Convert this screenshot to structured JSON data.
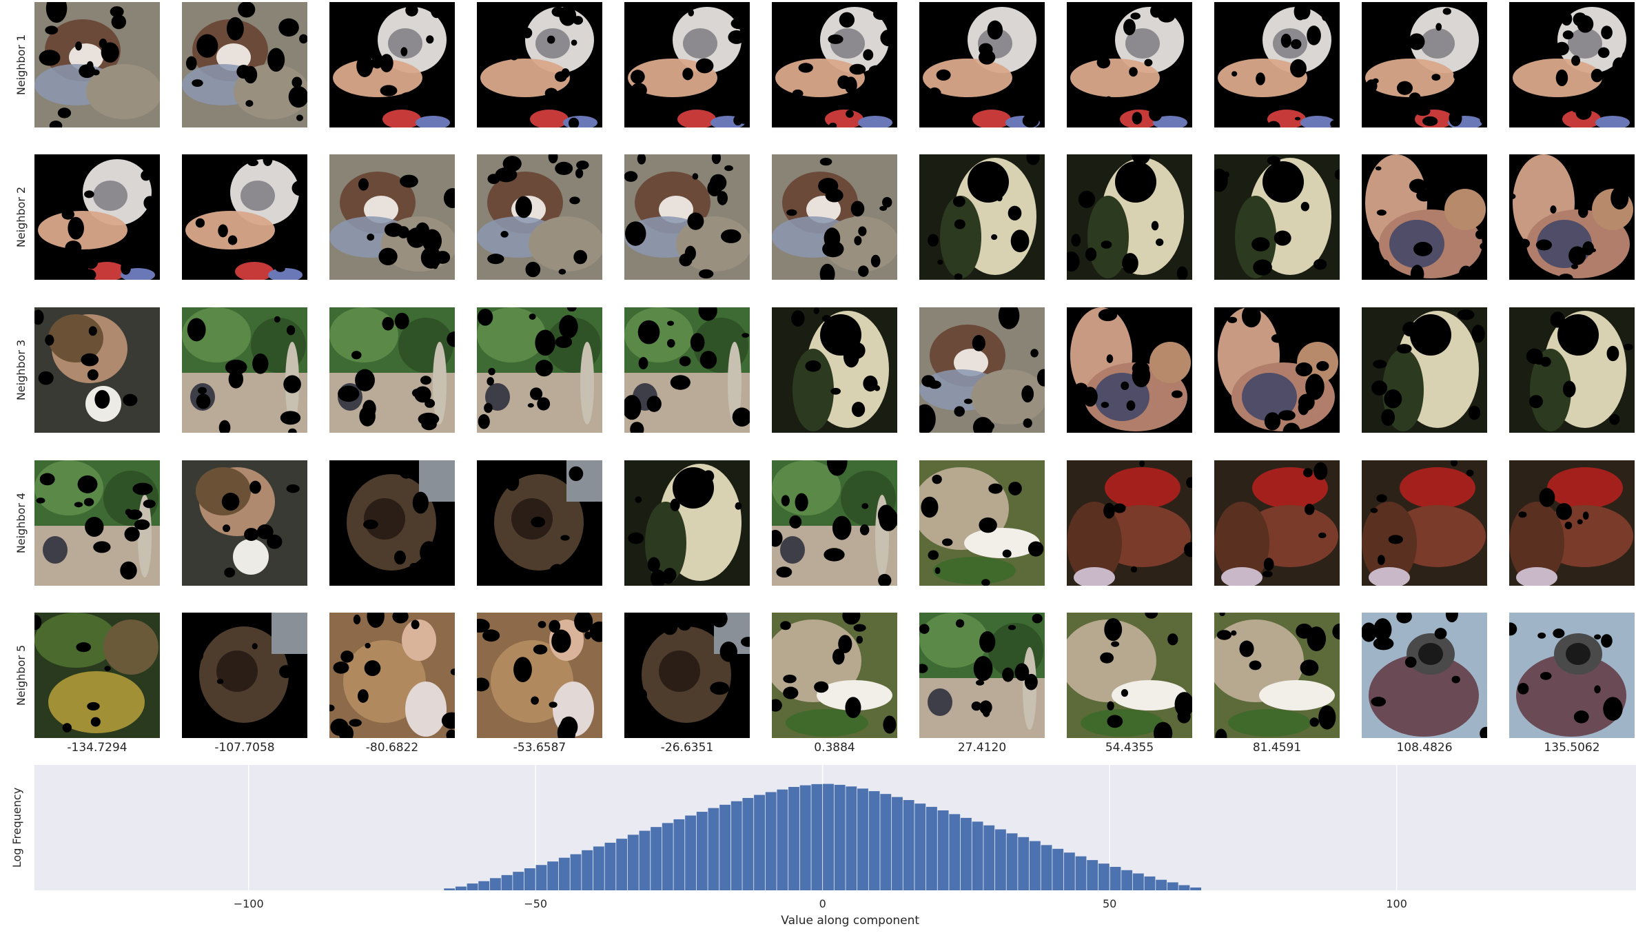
{
  "row_labels": [
    "Neighbor 1",
    "Neighbor 2",
    "Neighbor 3",
    "Neighbor 4",
    "Neighbor 5"
  ],
  "column_values": [
    "-134.7294",
    "-107.7058",
    "-80.6822",
    "-53.6587",
    "-26.6351",
    "0.3884",
    "27.4120",
    "54.4355",
    "81.4591",
    "108.4826",
    "135.5062"
  ],
  "thumbnail_grid": {
    "palette": {
      "mask_black": "#000000",
      "dog_brown": "#6b4a3a",
      "cat_white": "#d9d6d4",
      "skin_peach": "#d9a88a",
      "hay_gray": "#8a8476",
      "foliage_green": "#3e6a33",
      "dirt_tan": "#b9ab98",
      "golden_dog": "#d8d2b2",
      "flower_red": "#a3201c",
      "pot_brown": "#7a3b2a",
      "sky_blue": "#9fb4c6",
      "fruit_yellow": "#a29036"
    },
    "rows": [
      [
        "dog-hay",
        "dog-hay",
        "cat-white",
        "cat-white",
        "cat-white",
        "cat-white",
        "cat-white",
        "cat-white",
        "cat-white",
        "cat-white",
        "cat-white"
      ],
      [
        "cat-white",
        "cat-white",
        "dog-hay",
        "dog-hay",
        "dog-hay",
        "dog-hay",
        "golden-dog",
        "golden-dog",
        "golden-dog",
        "dog-pink",
        "dog-pink"
      ],
      [
        "woman-ball",
        "ostrich-foliage",
        "ostrich-foliage",
        "ostrich-foliage",
        "ostrich-foliage",
        "golden-dog",
        "dog-hay",
        "dog-pink",
        "dog-pink",
        "golden-dog",
        "golden-dog"
      ],
      [
        "ostrich-foliage",
        "woman-ball",
        "dark-dog",
        "dark-dog",
        "golden-dog",
        "ostrich-foliage",
        "garden-path",
        "flower-pot",
        "flower-pot",
        "flower-pot",
        "flower-pot"
      ],
      [
        "palm-fruit",
        "dark-dog",
        "girl-dog",
        "girl-dog",
        "dark-dog",
        "garden-path",
        "ostrich-foliage",
        "garden-path",
        "garden-path",
        "binoculars",
        "binoculars"
      ]
    ]
  },
  "chart_data": {
    "type": "bar",
    "description_scale": "log",
    "xlabel": "Value along component",
    "ylabel": "Log Frequency",
    "xlim": [
      -137.3,
      141.7
    ],
    "ylim_log10": [
      0,
      5.35
    ],
    "xticks": [
      -100,
      -50,
      0,
      50,
      100
    ],
    "xtick_labels": [
      "−100",
      "−50",
      "0",
      "50",
      "100"
    ],
    "grid": true,
    "bar_color": "#4c72b0",
    "background_color": "#eaeaf2",
    "bin_width": 2.0,
    "x_centers": [
      -65,
      -63,
      -61,
      -59,
      -57,
      -55,
      -53,
      -51,
      -49,
      -47,
      -45,
      -43,
      -41,
      -39,
      -37,
      -35,
      -33,
      -31,
      -29,
      -27,
      -25,
      -23,
      -21,
      -19,
      -17,
      -15,
      -13,
      -11,
      -9,
      -7,
      -5,
      -3,
      -1,
      1,
      3,
      5,
      7,
      9,
      11,
      13,
      15,
      17,
      19,
      21,
      23,
      25,
      27,
      29,
      31,
      33,
      35,
      37,
      39,
      41,
      43,
      45,
      47,
      49,
      51,
      53,
      55,
      57,
      59,
      61,
      63,
      65
    ],
    "log10_counts": [
      0.08,
      0.16,
      0.29,
      0.39,
      0.52,
      0.65,
      0.79,
      0.94,
      1.08,
      1.23,
      1.39,
      1.54,
      1.71,
      1.87,
      2.03,
      2.2,
      2.37,
      2.54,
      2.7,
      2.87,
      3.03,
      3.19,
      3.35,
      3.51,
      3.65,
      3.8,
      3.94,
      4.07,
      4.19,
      4.3,
      4.41,
      4.48,
      4.53,
      4.54,
      4.5,
      4.43,
      4.34,
      4.23,
      4.11,
      3.98,
      3.85,
      3.7,
      3.56,
      3.41,
      3.25,
      3.09,
      2.93,
      2.77,
      2.6,
      2.43,
      2.27,
      2.1,
      1.93,
      1.77,
      1.61,
      1.45,
      1.29,
      1.14,
      1.0,
      0.86,
      0.72,
      0.59,
      0.45,
      0.34,
      0.22,
      0.12
    ]
  }
}
